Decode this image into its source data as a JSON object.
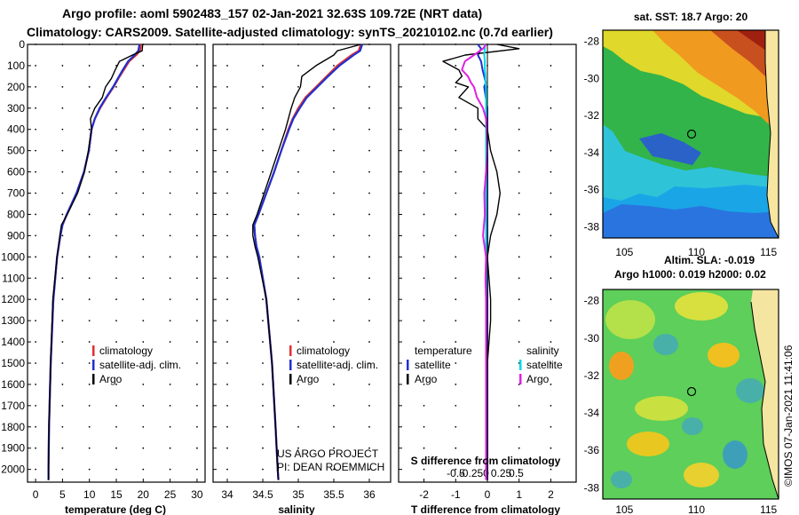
{
  "header": {
    "title_line1": "Argo profile: aoml 5902483_157 02-Jan-2021 32.63S 109.72E (NRT data)",
    "title_line2": "Climatology: CARS2009. Satellite-adjusted climatology: synTS_20210102.nc (0.7d earlier)"
  },
  "colors": {
    "climatology": "#e03030",
    "satellite": "#2030d0",
    "argo": "#000000",
    "sat_salinity": "#00d8e8",
    "argo_salinity": "#e020e0"
  },
  "depth_axis": {
    "ticks": [
      "0",
      "100",
      "200",
      "300",
      "400",
      "500",
      "600",
      "700",
      "800",
      "900",
      "1000",
      "1100",
      "1200",
      "1300",
      "1400",
      "1500",
      "1600",
      "1700",
      "1800",
      "1900",
      "2000"
    ],
    "ylim": [
      0,
      2060
    ]
  },
  "credit": {
    "line1": "US ARGO PROJECT",
    "line2": "PI: DEAN ROEMMICH",
    "imos": "©IMOS 07-Jan-2021 11:41:06"
  },
  "chart_data": [
    {
      "type": "line",
      "name": "temperature-profile",
      "xlabel": "temperature (deg C)",
      "xlim": [
        -1.5,
        31.5
      ],
      "xticks": [
        "0",
        "5",
        "10",
        "15",
        "20",
        "25",
        "30"
      ],
      "legend": [
        "climatology",
        "satellite-adj. clim.",
        "Argo"
      ],
      "depth": [
        0,
        30,
        50,
        80,
        120,
        160,
        200,
        250,
        300,
        350,
        400,
        500,
        600,
        700,
        800,
        850,
        900,
        1000,
        1200,
        1500,
        1800,
        2000,
        2050
      ],
      "series": [
        {
          "name": "climatology",
          "values": [
            19.6,
            19.4,
            18.7,
            17.4,
            16.4,
            15.4,
            14.5,
            13.2,
            12.0,
            11.0,
            10.4,
            9.9,
            9.0,
            7.6,
            5.8,
            5.0,
            4.6,
            4.0,
            3.3,
            2.8,
            2.5,
            2.4,
            2.4
          ]
        },
        {
          "name": "satellite-adj. clim.",
          "values": [
            19.3,
            19.1,
            18.4,
            17.2,
            16.2,
            15.3,
            14.4,
            13.1,
            11.9,
            11.0,
            10.4,
            9.9,
            9.0,
            7.6,
            5.8,
            5.0,
            4.6,
            4.0,
            3.3,
            2.8,
            2.5,
            2.4,
            2.4
          ]
        },
        {
          "name": "Argo",
          "values": [
            19.9,
            19.8,
            18.0,
            15.6,
            14.8,
            14.1,
            13.0,
            12.4,
            11.0,
            10.2,
            10.4,
            9.8,
            9.1,
            7.8,
            5.9,
            4.8,
            4.5,
            4.0,
            3.2,
            2.8,
            2.5,
            2.4,
            2.4
          ]
        }
      ]
    },
    {
      "type": "line",
      "name": "salinity-profile",
      "xlabel": "salinity",
      "xlim": [
        33.8,
        36.3
      ],
      "xticks": [
        "34",
        "34.5",
        "35",
        "35.5",
        "36"
      ],
      "legend": [
        "climatology",
        "satellite-adj. clim.",
        "Argo"
      ],
      "depth": [
        0,
        30,
        50,
        100,
        150,
        200,
        250,
        300,
        350,
        400,
        500,
        600,
        700,
        800,
        850,
        900,
        950,
        1000,
        1200,
        1500,
        1800,
        2000,
        2050
      ],
      "series": [
        {
          "name": "climatology",
          "values": [
            35.88,
            35.85,
            35.75,
            35.55,
            35.4,
            35.25,
            35.1,
            35.0,
            34.92,
            34.86,
            34.76,
            34.66,
            34.55,
            34.44,
            34.38,
            34.39,
            34.41,
            34.45,
            34.55,
            34.63,
            34.68,
            34.71,
            34.72
          ]
        },
        {
          "name": "satellite-adj. clim.",
          "values": [
            35.9,
            35.87,
            35.78,
            35.58,
            35.42,
            35.27,
            35.12,
            35.02,
            34.93,
            34.87,
            34.76,
            34.66,
            34.55,
            34.44,
            34.38,
            34.39,
            34.41,
            34.45,
            34.55,
            34.63,
            34.68,
            34.71,
            34.72
          ]
        },
        {
          "name": "Argo",
          "values": [
            35.88,
            35.55,
            35.5,
            35.25,
            35.05,
            35.03,
            34.95,
            34.9,
            34.86,
            34.82,
            34.72,
            34.62,
            34.52,
            34.42,
            34.36,
            34.36,
            34.39,
            34.43,
            34.55,
            34.63,
            34.68,
            34.71,
            34.72
          ]
        }
      ]
    },
    {
      "type": "line",
      "name": "difference-profile",
      "xlabel": "T difference from climatology",
      "secondary_xlabel": "S difference from climatology",
      "xlim": [
        -2.8,
        2.8
      ],
      "xticks": [
        "-2",
        "-1",
        "0",
        "1",
        "2"
      ],
      "secondary_xticks": [
        "-0.5",
        "-0.25",
        "0",
        "0.25",
        "0.5"
      ],
      "legend_titles": [
        "temperature",
        "salinity"
      ],
      "legend": [
        "satellite",
        "Argo",
        "satellite",
        "Argo"
      ],
      "depth": [
        0,
        20,
        50,
        80,
        120,
        150,
        180,
        200,
        250,
        300,
        350,
        400,
        500,
        600,
        700,
        800,
        900,
        1000,
        1100,
        1200,
        1300,
        1500,
        2000,
        2050
      ],
      "series": [
        {
          "name": "temperature satellite",
          "values": [
            -0.3,
            -0.2,
            -0.3,
            -0.2,
            -0.15,
            -0.1,
            -0.05,
            -0.1,
            -0.05,
            0.0,
            0.0,
            0.0,
            0.0,
            0.0,
            0.0,
            0.0,
            0.0,
            0.0,
            0.0,
            0.0,
            0.0,
            0.0,
            0.0,
            0.0
          ]
        },
        {
          "name": "temperature Argo",
          "values": [
            0.3,
            1.0,
            -0.7,
            -1.4,
            -0.9,
            -0.8,
            -1.0,
            -0.6,
            -0.9,
            -0.3,
            -0.3,
            0.0,
            0.1,
            0.3,
            0.4,
            0.3,
            0.1,
            0.0,
            0.05,
            0.1,
            0.1,
            0.0,
            0.0,
            0.0
          ]
        },
        {
          "name": "salinity satellite",
          "values": [
            -0.02,
            -0.02,
            -0.03,
            -0.02,
            -0.02,
            -0.01,
            -0.01,
            0.0,
            0.0,
            0.0,
            0.0,
            0.0,
            0.0,
            0.0,
            0.0,
            0.0,
            0.0,
            0.0,
            0.0,
            0.0,
            0.0,
            0.0,
            0.0,
            0.0
          ]
        },
        {
          "name": "salinity Argo",
          "values": [
            0.0,
            -0.05,
            -0.2,
            -0.35,
            -0.4,
            -0.3,
            -0.25,
            -0.2,
            -0.15,
            -0.05,
            0.0,
            0.01,
            0.02,
            0.0,
            -0.03,
            -0.02,
            -0.05,
            0.0,
            -0.01,
            0.0,
            0.0,
            0.0,
            0.0,
            0.0
          ]
        }
      ]
    },
    {
      "type": "heatmap",
      "name": "sst-map",
      "title": "sat. SST: 18.7 Argo: 20",
      "xticks": [
        "105",
        "110",
        "115"
      ],
      "yticks": [
        "-28",
        "-30",
        "-32",
        "-34",
        "-36",
        "-38"
      ],
      "xlim": [
        103.5,
        115.7
      ],
      "ylim": [
        -38.6,
        -27.4
      ],
      "float_position": [
        109.72,
        -32.63
      ]
    },
    {
      "type": "heatmap",
      "name": "sla-map",
      "title": "Altim. SLA: -0.019",
      "subtitle": "Argo h1000: 0.019 h2000: 0.02",
      "xticks": [
        "105",
        "110",
        "115"
      ],
      "yticks": [
        "-28",
        "-30",
        "-32",
        "-34",
        "-36",
        "-38"
      ],
      "xlim": [
        103.5,
        115.7
      ],
      "ylim": [
        -38.6,
        -27.4
      ],
      "float_position": [
        109.72,
        -32.63
      ]
    }
  ]
}
